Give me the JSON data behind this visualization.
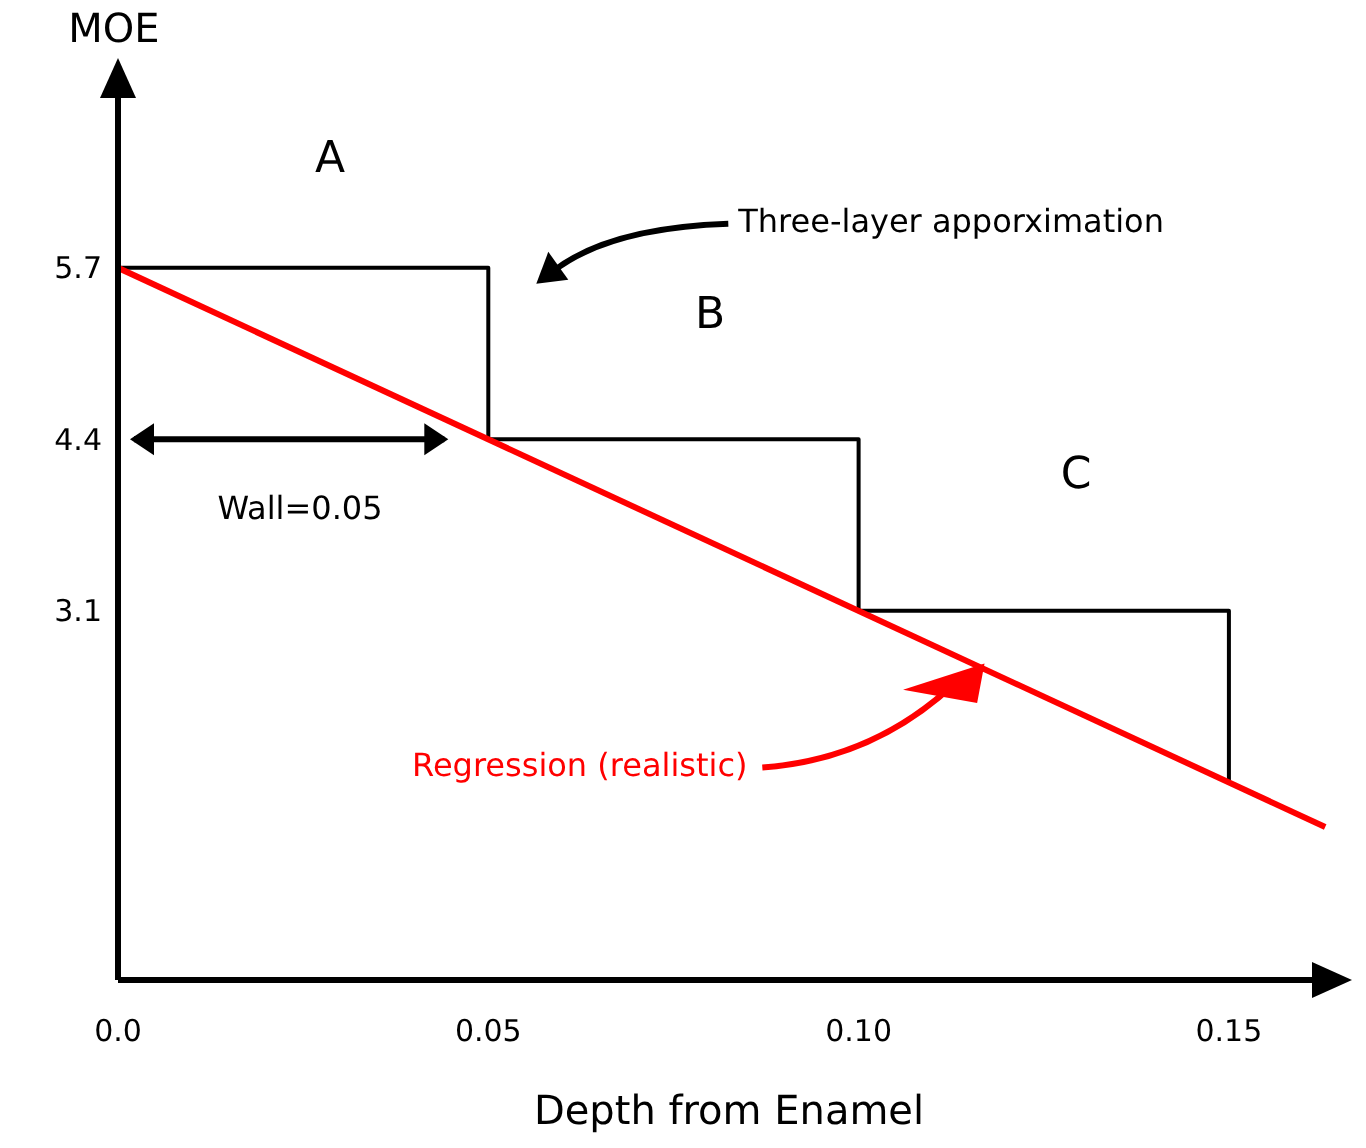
{
  "chart_data": {
    "type": "line",
    "xlabel": "Depth from Enamel",
    "ylabel": "MOE",
    "xlim": [
      0,
      0.165
    ],
    "ylim": [
      0.3,
      7.2
    ],
    "xticks": [
      {
        "value": 0,
        "label": "0.0"
      },
      0.05,
      {
        "value": 0.1,
        "label": "0.10"
      },
      0.15
    ],
    "yticks": [
      5.7,
      4.4,
      3.1
    ],
    "series": [
      {
        "name": "Three-layer apporximation",
        "type": "step",
        "color": "#000000",
        "x": [
          0,
          0.05,
          0.1,
          0.15
        ],
        "values": [
          5.7,
          4.4,
          3.1,
          1.8
        ]
      },
      {
        "name": "Regression (realistic)",
        "type": "line",
        "color": "#ff0000",
        "x": [
          0,
          0.163
        ],
        "values": [
          5.7,
          1.46
        ]
      }
    ],
    "annotations": [
      "A",
      "B",
      "C",
      "Wall=0.05"
    ],
    "grid": false,
    "legend": false,
    "marker": "none",
    "line_style": "solid"
  }
}
